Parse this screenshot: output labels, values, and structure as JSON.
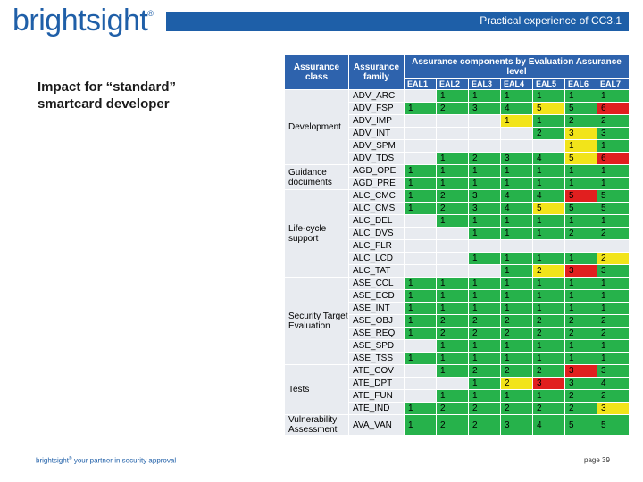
{
  "header": {
    "logo_text": "brightsight",
    "logo_mark": "®",
    "title": "Practical experience of CC3.1"
  },
  "subtitle_lines": [
    "Impact for “standard”",
    "smartcard developer"
  ],
  "footer": {
    "brand": "brightsight",
    "brand_mark": "®",
    "tagline": " your partner in security approval",
    "page": "page 39"
  },
  "colors": {
    "header_blue": "#2e63ad",
    "cell_grey": "#e8ebf0",
    "green": "#26b24b",
    "red": "#e11f1f",
    "yellow": "#f2e41a"
  },
  "table": {
    "col_class": "Assurance class",
    "col_family": "Assurance family",
    "components_title": "Assurance components by Evaluation Assurance level",
    "eal_labels": [
      "EAL1",
      "EAL2",
      "EAL3",
      "EAL4",
      "EAL5",
      "EAL6",
      "EAL7"
    ],
    "groups": [
      {
        "class": "Development",
        "rows": [
          {
            "family": "ADV_ARC",
            "values": [
              "",
              "1",
              "1",
              "1",
              "1",
              "1",
              "1"
            ],
            "colors": [
              "e",
              "g",
              "g",
              "g",
              "g",
              "g",
              "g"
            ]
          },
          {
            "family": "ADV_FSP",
            "values": [
              "1",
              "2",
              "3",
              "4",
              "5",
              "5",
              "6"
            ],
            "colors": [
              "g",
              "g",
              "g",
              "g",
              "y",
              "g",
              "r"
            ]
          },
          {
            "family": "ADV_IMP",
            "values": [
              "",
              "",
              "",
              "1",
              "1",
              "2",
              "2"
            ],
            "colors": [
              "e",
              "e",
              "e",
              "y",
              "g",
              "g",
              "g"
            ]
          },
          {
            "family": "ADV_INT",
            "values": [
              "",
              "",
              "",
              "",
              "2",
              "3",
              "3"
            ],
            "colors": [
              "e",
              "e",
              "e",
              "e",
              "g",
              "y",
              "g"
            ]
          },
          {
            "family": "ADV_SPM",
            "values": [
              "",
              "",
              "",
              "",
              "",
              "1",
              "1"
            ],
            "colors": [
              "e",
              "e",
              "e",
              "e",
              "e",
              "y",
              "g"
            ]
          },
          {
            "family": "ADV_TDS",
            "values": [
              "",
              "1",
              "2",
              "3",
              "4",
              "5",
              "6"
            ],
            "colors": [
              "e",
              "g",
              "g",
              "g",
              "g",
              "y",
              "r"
            ]
          }
        ]
      },
      {
        "class": "Guidance documents",
        "rows": [
          {
            "family": "AGD_OPE",
            "values": [
              "1",
              "1",
              "1",
              "1",
              "1",
              "1",
              "1"
            ],
            "colors": [
              "g",
              "g",
              "g",
              "g",
              "g",
              "g",
              "g"
            ]
          },
          {
            "family": "AGD_PRE",
            "values": [
              "1",
              "1",
              "1",
              "1",
              "1",
              "1",
              "1"
            ],
            "colors": [
              "g",
              "g",
              "g",
              "g",
              "g",
              "g",
              "g"
            ]
          }
        ]
      },
      {
        "class": "Life-cycle support",
        "rows": [
          {
            "family": "ALC_CMC",
            "values": [
              "1",
              "2",
              "3",
              "4",
              "4",
              "5",
              "5"
            ],
            "colors": [
              "g",
              "g",
              "g",
              "g",
              "g",
              "r",
              "g"
            ]
          },
          {
            "family": "ALC_CMS",
            "values": [
              "1",
              "2",
              "3",
              "4",
              "5",
              "5",
              "5"
            ],
            "colors": [
              "g",
              "g",
              "g",
              "g",
              "y",
              "g",
              "g"
            ]
          },
          {
            "family": "ALC_DEL",
            "values": [
              "",
              "1",
              "1",
              "1",
              "1",
              "1",
              "1"
            ],
            "colors": [
              "e",
              "g",
              "g",
              "g",
              "g",
              "g",
              "g"
            ]
          },
          {
            "family": "ALC_DVS",
            "values": [
              "",
              "",
              "1",
              "1",
              "1",
              "2",
              "2"
            ],
            "colors": [
              "e",
              "e",
              "g",
              "g",
              "g",
              "g",
              "g"
            ]
          },
          {
            "family": "ALC_FLR",
            "values": [
              "",
              "",
              "",
              "",
              "",
              "",
              ""
            ],
            "colors": [
              "e",
              "e",
              "e",
              "e",
              "e",
              "e",
              "e"
            ]
          },
          {
            "family": "ALC_LCD",
            "values": [
              "",
              "",
              "1",
              "1",
              "1",
              "1",
              "2"
            ],
            "colors": [
              "e",
              "e",
              "g",
              "g",
              "g",
              "g",
              "y"
            ]
          },
          {
            "family": "ALC_TAT",
            "values": [
              "",
              "",
              "",
              "1",
              "2",
              "3",
              "3"
            ],
            "colors": [
              "e",
              "e",
              "e",
              "g",
              "y",
              "r",
              "g"
            ]
          }
        ]
      },
      {
        "class": "Security Target Evaluation",
        "rows": [
          {
            "family": "ASE_CCL",
            "values": [
              "1",
              "1",
              "1",
              "1",
              "1",
              "1",
              "1"
            ],
            "colors": [
              "g",
              "g",
              "g",
              "g",
              "g",
              "g",
              "g"
            ]
          },
          {
            "family": "ASE_ECD",
            "values": [
              "1",
              "1",
              "1",
              "1",
              "1",
              "1",
              "1"
            ],
            "colors": [
              "g",
              "g",
              "g",
              "g",
              "g",
              "g",
              "g"
            ]
          },
          {
            "family": "ASE_INT",
            "values": [
              "1",
              "1",
              "1",
              "1",
              "1",
              "1",
              "1"
            ],
            "colors": [
              "g",
              "g",
              "g",
              "g",
              "g",
              "g",
              "g"
            ]
          },
          {
            "family": "ASE_OBJ",
            "values": [
              "1",
              "2",
              "2",
              "2",
              "2",
              "2",
              "2"
            ],
            "colors": [
              "g",
              "g",
              "g",
              "g",
              "g",
              "g",
              "g"
            ]
          },
          {
            "family": "ASE_REQ",
            "values": [
              "1",
              "2",
              "2",
              "2",
              "2",
              "2",
              "2"
            ],
            "colors": [
              "g",
              "g",
              "g",
              "g",
              "g",
              "g",
              "g"
            ]
          },
          {
            "family": "ASE_SPD",
            "values": [
              "",
              "1",
              "1",
              "1",
              "1",
              "1",
              "1"
            ],
            "colors": [
              "e",
              "g",
              "g",
              "g",
              "g",
              "g",
              "g"
            ]
          },
          {
            "family": "ASE_TSS",
            "values": [
              "1",
              "1",
              "1",
              "1",
              "1",
              "1",
              "1"
            ],
            "colors": [
              "g",
              "g",
              "g",
              "g",
              "g",
              "g",
              "g"
            ]
          }
        ]
      },
      {
        "class": "Tests",
        "rows": [
          {
            "family": "ATE_COV",
            "values": [
              "",
              "1",
              "2",
              "2",
              "2",
              "3",
              "3"
            ],
            "colors": [
              "e",
              "g",
              "g",
              "g",
              "g",
              "r",
              "g"
            ]
          },
          {
            "family": "ATE_DPT",
            "values": [
              "",
              "",
              "1",
              "2",
              "3",
              "3",
              "4"
            ],
            "colors": [
              "e",
              "e",
              "g",
              "y",
              "r",
              "g",
              "g"
            ]
          },
          {
            "family": "ATE_FUN",
            "values": [
              "",
              "1",
              "1",
              "1",
              "1",
              "2",
              "2"
            ],
            "colors": [
              "e",
              "g",
              "g",
              "g",
              "g",
              "g",
              "g"
            ]
          },
          {
            "family": "ATE_IND",
            "values": [
              "1",
              "2",
              "2",
              "2",
              "2",
              "2",
              "3"
            ],
            "colors": [
              "g",
              "g",
              "g",
              "g",
              "g",
              "g",
              "y"
            ]
          }
        ]
      },
      {
        "class": "Vulnerability Assessment",
        "rows": [
          {
            "family": "AVA_VAN",
            "values": [
              "1",
              "2",
              "2",
              "3",
              "4",
              "5",
              "5"
            ],
            "colors": [
              "g",
              "g",
              "g",
              "g",
              "g",
              "g",
              "g"
            ]
          }
        ]
      }
    ]
  }
}
